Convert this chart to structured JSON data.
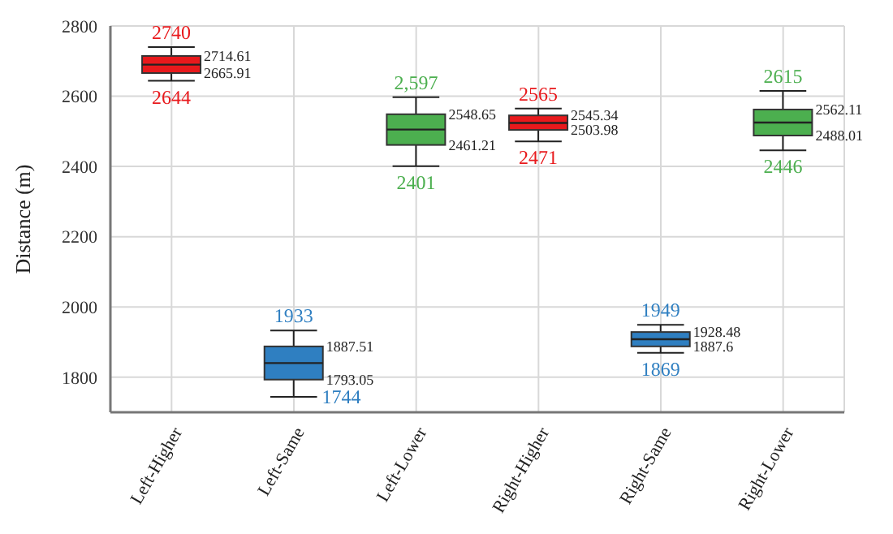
{
  "chart_data": {
    "type": "box",
    "ylabel": "Distance (m)",
    "categories": [
      "Left-Higher",
      "Left-Same",
      "Left-Lower",
      "Right-Higher",
      "Right-Same",
      "Right-Lower"
    ],
    "boxes": [
      {
        "low": 2644,
        "q1": 2665.91,
        "median": 2690,
        "q3": 2714.61,
        "high": 2740
      },
      {
        "low": 1744,
        "q1": 1793.05,
        "median": 1840,
        "q3": 1887.51,
        "high": 1933
      },
      {
        "low": 2401,
        "q1": 2461.21,
        "median": 2505,
        "q3": 2548.65,
        "high": 2597
      },
      {
        "low": 2471,
        "q1": 2503.98,
        "median": 2524,
        "q3": 2545.34,
        "high": 2565
      },
      {
        "low": 1869,
        "q1": 1887.6,
        "median": 1908,
        "q3": 1928.48,
        "high": 1949
      },
      {
        "low": 2446,
        "q1": 2488.01,
        "median": 2525,
        "q3": 2562.11,
        "high": 2615
      }
    ],
    "colors": [
      "#e8191c",
      "#2f7fc1",
      "#4caf4f",
      "#e8191c",
      "#2f7fc1",
      "#4caf4f"
    ],
    "ylim": [
      1700,
      2800
    ],
    "yticks": [
      {
        "value": 1700,
        "label": null
      },
      1800,
      2000,
      2200,
      2400,
      2600,
      2800
    ],
    "grid": true,
    "annotations": [
      {
        "text": "2740",
        "x": "Left-Higher",
        "y": 2740
      },
      {
        "text": "2714.61",
        "x": "Left-Higher",
        "y": 2714.61
      },
      {
        "text": "2665.91",
        "x": "Left-Higher",
        "y": 2665.91
      },
      {
        "text": "2644",
        "x": "Left-Higher",
        "y": 2644
      },
      {
        "text": "1933",
        "x": "Left-Same",
        "y": 1933
      },
      {
        "text": "1887.51",
        "x": "Left-Same",
        "y": 1887.51
      },
      {
        "text": "1793.05",
        "x": "Left-Same",
        "y": 1793.05
      },
      {
        "text": "1744",
        "x": "Left-Same",
        "y": 1744
      },
      {
        "text": "2,597",
        "x": "Left-Lower",
        "y": 2597
      },
      {
        "text": "2548.65",
        "x": "Left-Lower",
        "y": 2548.65
      },
      {
        "text": "2461.21",
        "x": "Left-Lower",
        "y": 2461.21
      },
      {
        "text": "2401",
        "x": "Left-Lower",
        "y": 2401
      },
      {
        "text": "2565",
        "x": "Right-Higher",
        "y": 2565
      },
      {
        "text": "2545.34",
        "x": "Right-Higher",
        "y": 2545.34
      },
      {
        "text": "2503.98",
        "x": "Right-Higher",
        "y": 2503.98
      },
      {
        "text": "2471",
        "x": "Right-Higher",
        "y": 2471
      },
      {
        "text": "1949",
        "x": "Right-Same",
        "y": 1949
      },
      {
        "text": "1928.48",
        "x": "Right-Same",
        "y": 1928.48
      },
      {
        "text": "1887.6",
        "x": "Right-Same",
        "y": 1887.6
      },
      {
        "text": "1869",
        "x": "Right-Same",
        "y": 1869
      },
      {
        "text": "2615",
        "x": "Right-Lower",
        "y": 2615
      },
      {
        "text": "2562.11",
        "x": "Right-Lower",
        "y": 2562.11
      },
      {
        "text": "2488.01",
        "x": "Right-Lower",
        "y": 2488.01
      },
      {
        "text": "2446",
        "x": "Right-Lower",
        "y": 2446
      }
    ]
  }
}
